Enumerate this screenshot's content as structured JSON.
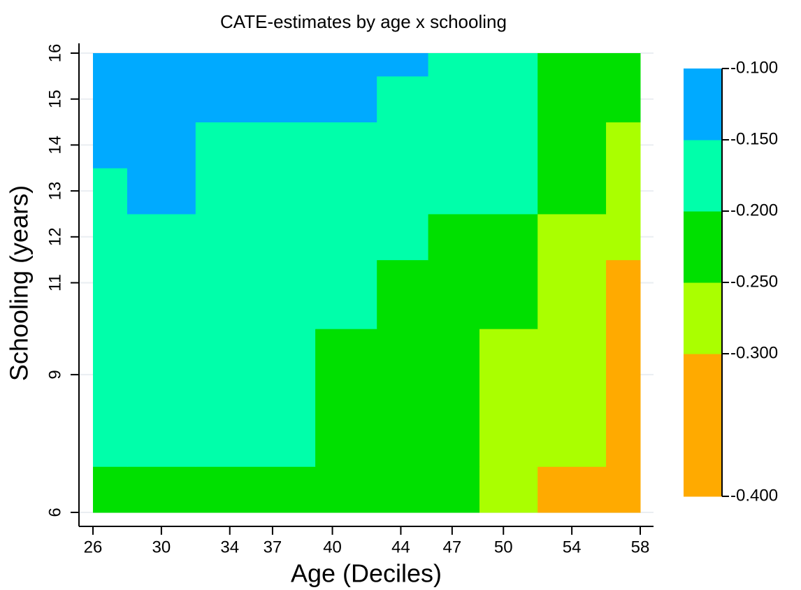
{
  "chart_data": {
    "type": "heatmap",
    "title": "CATE-estimates  by age x schooling",
    "x_label": "Age (Deciles)",
    "y_label": "Schooling (years)",
    "xlim": [
      26,
      58
    ],
    "xticks": [
      26,
      30,
      34,
      {
        "value": 36.5,
        "label": "37"
      },
      40,
      44,
      47,
      50,
      54,
      58
    ],
    "ylim": [
      6,
      16
    ],
    "yticks": [
      6,
      9,
      11,
      12,
      13,
      14,
      15,
      16
    ],
    "grid": true,
    "x_edges": [
      26,
      28,
      32,
      39,
      42.6,
      45.6,
      48.6,
      52,
      56,
      58
    ],
    "y_edges": [
      6,
      7,
      10,
      11.5,
      12.5,
      13.5,
      14.5,
      15.5,
      16
    ],
    "z": [
      [
        -0.225,
        -0.225,
        -0.225,
        -0.225,
        -0.225,
        -0.225,
        -0.275,
        -0.35,
        -0.35
      ],
      [
        -0.175,
        -0.175,
        -0.175,
        -0.225,
        -0.225,
        -0.225,
        -0.275,
        -0.275,
        -0.35
      ],
      [
        -0.175,
        -0.175,
        -0.175,
        -0.175,
        -0.225,
        -0.225,
        -0.225,
        -0.275,
        -0.35
      ],
      [
        -0.175,
        -0.175,
        -0.175,
        -0.175,
        -0.175,
        -0.225,
        -0.225,
        -0.275,
        -0.275
      ],
      [
        -0.175,
        -0.125,
        -0.175,
        -0.175,
        -0.175,
        -0.175,
        -0.175,
        -0.225,
        -0.275
      ],
      [
        -0.125,
        -0.125,
        -0.175,
        -0.175,
        -0.175,
        -0.175,
        -0.175,
        -0.225,
        -0.275
      ],
      [
        -0.125,
        -0.125,
        -0.125,
        -0.125,
        -0.175,
        -0.175,
        -0.175,
        -0.225,
        -0.225
      ],
      [
        -0.125,
        -0.125,
        -0.125,
        -0.125,
        -0.125,
        -0.175,
        -0.175,
        -0.225,
        -0.225
      ]
    ],
    "zlim": [
      -0.4,
      -0.1
    ],
    "zticks": [
      {
        "value": -0.4,
        "label": "-0.400"
      },
      {
        "value": -0.3,
        "label": "-0.300"
      },
      {
        "value": -0.25,
        "label": "-0.250"
      },
      {
        "value": -0.2,
        "label": "-0.200"
      },
      {
        "value": -0.15,
        "label": "-0.150"
      },
      {
        "value": -0.1,
        "label": "-0.100"
      }
    ],
    "colors": [
      "#ffaa00",
      "#aaff00",
      "#00e000",
      "#00ffaa",
      "#00aaff"
    ]
  }
}
